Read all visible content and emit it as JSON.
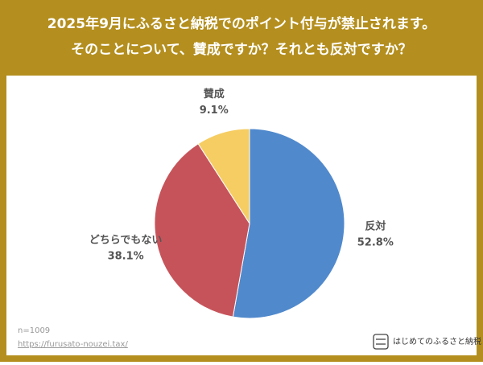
{
  "chart_data": {
    "type": "pie",
    "title": [
      "2025年9月にふるさと納税でのポイント付与が禁止されます。",
      "そのことについて、賛成ですか？それとも反対ですか？"
    ],
    "categories": [
      "反対",
      "どちらでもない",
      "賛成"
    ],
    "values": [
      52.8,
      38.1,
      9.1
    ],
    "value_labels": [
      "52.8%",
      "38.1%",
      "9.1%"
    ],
    "colors": [
      "#5089cc",
      "#c7535a",
      "#f6cd63"
    ],
    "footnote": "n=1009",
    "source": "https://furusato-nouzei.tax/",
    "brand": "はじめてのふるさと納税"
  }
}
